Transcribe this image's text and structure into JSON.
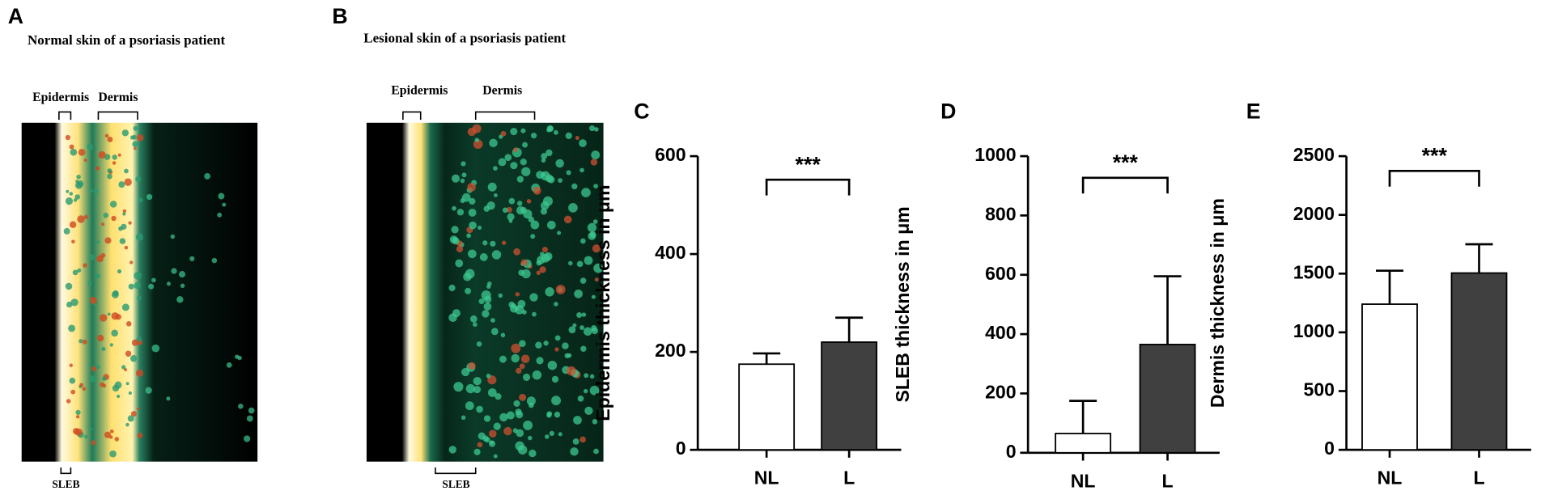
{
  "panels": [
    {
      "letter": "A",
      "title": "Normal skin of a psoriasis patient",
      "epidermis": "Epidermis",
      "dermis": "Dermis",
      "sleb": "SLEB"
    },
    {
      "letter": "B",
      "title": "Lesional skin of a psoriasis patient",
      "epidermis": "Epidermis",
      "dermis": "Dermis",
      "sleb": "SLEB"
    }
  ],
  "chart_data": [
    {
      "type": "bar",
      "panel": "C",
      "ylabel": "Epidermis thickness in μm",
      "categories": [
        "NL",
        "L"
      ],
      "values": [
        175,
        220
      ],
      "errors": [
        22,
        50
      ],
      "colors": [
        "#ffffff",
        "#404040"
      ],
      "ylim": [
        0,
        600
      ],
      "yticks": [
        0,
        200,
        400,
        600
      ],
      "annotation": "***"
    },
    {
      "type": "bar",
      "panel": "D",
      "ylabel": "SLEB thickness in μm",
      "categories": [
        "NL",
        "L"
      ],
      "values": [
        65,
        365
      ],
      "errors": [
        110,
        230
      ],
      "colors": [
        "#ffffff",
        "#404040"
      ],
      "ylim": [
        0,
        1000
      ],
      "yticks": [
        0,
        200,
        400,
        600,
        800,
        1000
      ],
      "annotation": "***"
    },
    {
      "type": "bar",
      "panel": "E",
      "ylabel": "Dermis thickness in μm",
      "categories": [
        "NL",
        "L"
      ],
      "values": [
        1240,
        1505
      ],
      "errors": [
        285,
        245
      ],
      "colors": [
        "#ffffff",
        "#404040"
      ],
      "ylim": [
        0,
        2500
      ],
      "yticks": [
        0,
        500,
        1000,
        1500,
        2000,
        2500
      ],
      "annotation": "***"
    }
  ]
}
